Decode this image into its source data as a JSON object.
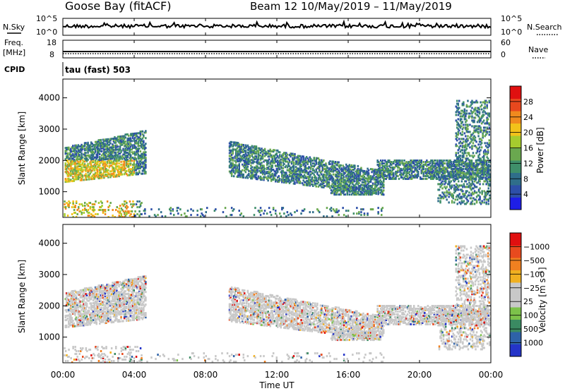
{
  "header": {
    "title": "Goose Bay (fitACF)",
    "beam": "Beam 12",
    "dates": "10/May/2019 – 11/May/2019"
  },
  "top_panels": {
    "nsky_label": "N.Sky",
    "nsky_ticks": [
      "10^5",
      "10^0"
    ],
    "nsearch_label": "N.Search",
    "nsearch_ticks": [
      "10^5",
      "10^0"
    ],
    "freq_label": "Freq.",
    "freq_unit": "[MHz]",
    "freq_ticks": [
      "18",
      "8"
    ],
    "nave_label": "Nave",
    "nave_ticks": [
      "60",
      "0"
    ],
    "cpid_label": "CPID",
    "cpid_text": "tau (fast) 503"
  },
  "time_axis": {
    "title": "Time UT",
    "ticks": [
      "00:00",
      "04:00",
      "08:00",
      "12:00",
      "16:00",
      "20:00",
      "00:00"
    ]
  },
  "chart_data": [
    {
      "type": "heatmap",
      "name": "Power",
      "ylabel": "Slant Range [km]",
      "ylim": [
        180,
        4600
      ],
      "yticks": [
        "1000",
        "2000",
        "3000",
        "4000"
      ],
      "xlim_hours": [
        0,
        24
      ],
      "colorbar": {
        "label": "Power [dB]",
        "ticks": [
          "4",
          "8",
          "12",
          "16",
          "20",
          "24",
          "28"
        ],
        "colors": [
          "#1e1ee6",
          "#2d4fa8",
          "#2f6e8a",
          "#3f8f6a",
          "#6aa84f",
          "#a6cc2e",
          "#f2c21a",
          "#f08a1e",
          "#e8481e",
          "#e01010"
        ]
      }
    },
    {
      "type": "heatmap",
      "name": "Velocity",
      "ylabel": "Slant Range [km]",
      "ylim": [
        180,
        4600
      ],
      "yticks": [
        "1000",
        "2000",
        "3000",
        "4000"
      ],
      "xlim_hours": [
        0,
        24
      ],
      "colorbar": {
        "label": "Velocity [m s⁻¹]",
        "ticks": [
          "1000",
          "500",
          "100",
          "25",
          "−25",
          "−100",
          "−500",
          "−1000"
        ],
        "colors": [
          "#2434c8",
          "#2e62a8",
          "#3a8a62",
          "#7cc24a",
          "#c8c8c8",
          "#c8c8c8",
          "#f0b020",
          "#f08020",
          "#e84a1e",
          "#e01010"
        ]
      }
    }
  ]
}
